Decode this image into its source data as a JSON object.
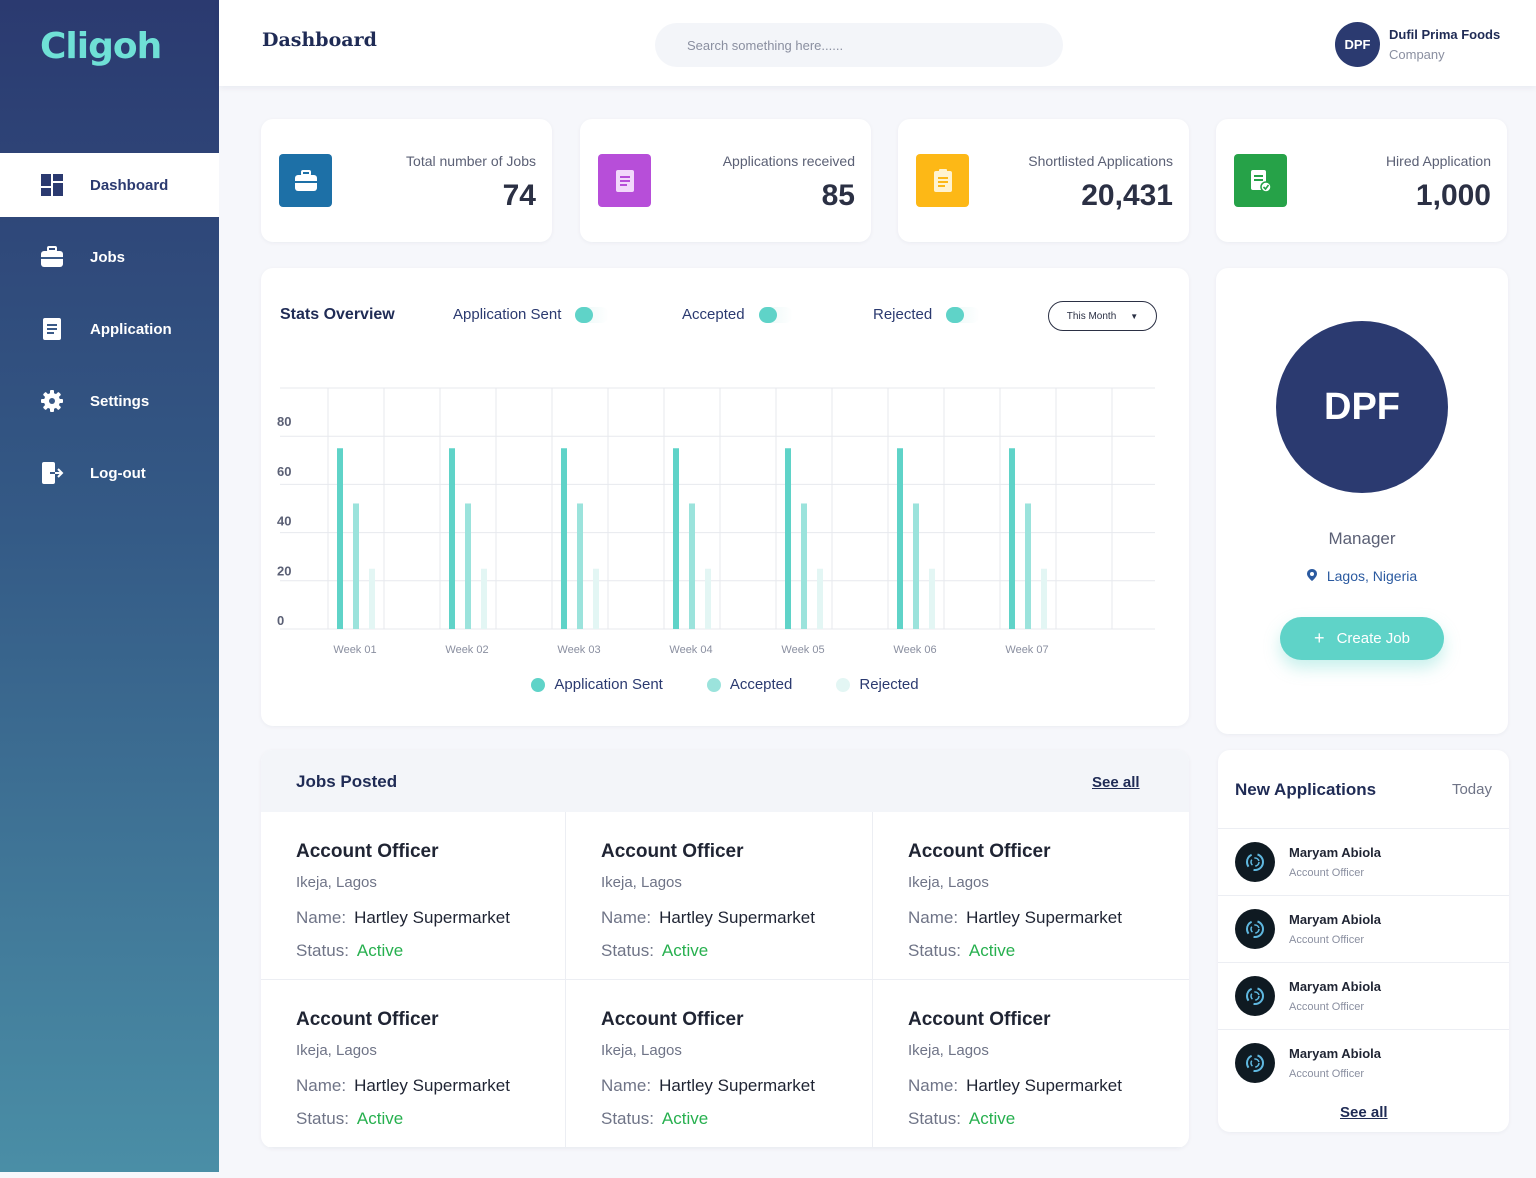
{
  "app": {
    "logo_text": "Cligoh"
  },
  "sidebar": {
    "items": [
      {
        "label": "Dashboard",
        "icon": "dashboard-icon",
        "active": true
      },
      {
        "label": "Jobs",
        "icon": "briefcase-icon",
        "active": false
      },
      {
        "label": "Application",
        "icon": "document-icon",
        "active": false
      },
      {
        "label": "Settings",
        "icon": "gear-icon",
        "active": false
      },
      {
        "label": "Log-out",
        "icon": "logout-icon",
        "active": false
      }
    ]
  },
  "header": {
    "title": "Dashboard",
    "search_placeholder": "Search something here......",
    "profile": {
      "initials": "DPF",
      "name": "Dufil Prima Foods",
      "subtitle": "Company"
    }
  },
  "stats": [
    {
      "label": "Total number of Jobs",
      "value": "74",
      "icon": "briefcase-icon",
      "color": "#1d70a7"
    },
    {
      "label": "Applications received",
      "value": "85",
      "icon": "document-icon",
      "color": "#b74ed9"
    },
    {
      "label": "Shortlisted Applications",
      "value": "20,431",
      "icon": "clipboard-icon",
      "color": "#fdb816"
    },
    {
      "label": "Hired Application",
      "value": "1,000",
      "icon": "approved-document-icon",
      "color": "#26a248"
    }
  ],
  "overview": {
    "title": "Stats Overview",
    "toggles": [
      "Application Sent",
      "Accepted",
      "Rejected"
    ],
    "period": "This Month"
  },
  "chart_data": {
    "type": "bar",
    "categories": [
      "Week 01",
      "Week 02",
      "Week 03",
      "Week 04",
      "Week 05",
      "Week 06",
      "Week 07"
    ],
    "series": [
      {
        "name": "Application Sent",
        "values": [
          72,
          72,
          72,
          72,
          72,
          72,
          72
        ],
        "color": "#5fd3c8"
      },
      {
        "name": "Accepted",
        "values": [
          50,
          50,
          50,
          50,
          50,
          50,
          50
        ],
        "color": "#9be3dc"
      },
      {
        "name": "Rejected",
        "values": [
          24,
          24,
          24,
          24,
          24,
          24,
          24
        ],
        "color": "#e3f6f4"
      }
    ],
    "yticks": [
      0,
      20,
      40,
      60,
      80
    ],
    "ylim": [
      0,
      96
    ],
    "grid": true,
    "legend_placement": "bottom"
  },
  "manager": {
    "initials": "DPF",
    "role": "Manager",
    "location": "Lagos, Nigeria",
    "create_label": "Create Job"
  },
  "jobs_posted": {
    "title": "Jobs Posted",
    "see_all": "See all",
    "name_label": "Name:",
    "status_label": "Status:",
    "items": [
      {
        "title": "Account Officer",
        "location": "Ikeja, Lagos",
        "name": "Hartley Supermarket",
        "status": "Active"
      },
      {
        "title": "Account Officer",
        "location": "Ikeja, Lagos",
        "name": "Hartley Supermarket",
        "status": "Active"
      },
      {
        "title": "Account Officer",
        "location": "Ikeja, Lagos",
        "name": "Hartley Supermarket",
        "status": "Active"
      },
      {
        "title": "Account Officer",
        "location": "Ikeja, Lagos",
        "name": "Hartley Supermarket",
        "status": "Active"
      },
      {
        "title": "Account Officer",
        "location": "Ikeja, Lagos",
        "name": "Hartley Supermarket",
        "status": "Active"
      },
      {
        "title": "Account Officer",
        "location": "Ikeja, Lagos",
        "name": "Hartley Supermarket",
        "status": "Active"
      }
    ]
  },
  "new_applications": {
    "title": "New Applications",
    "period": "Today",
    "see_all": "See all",
    "items": [
      {
        "name": "Maryam Abiola",
        "role": "Account Officer"
      },
      {
        "name": "Maryam Abiola",
        "role": "Account Officer"
      },
      {
        "name": "Maryam Abiola",
        "role": "Account Officer"
      },
      {
        "name": "Maryam Abiola",
        "role": "Account Officer"
      }
    ]
  }
}
